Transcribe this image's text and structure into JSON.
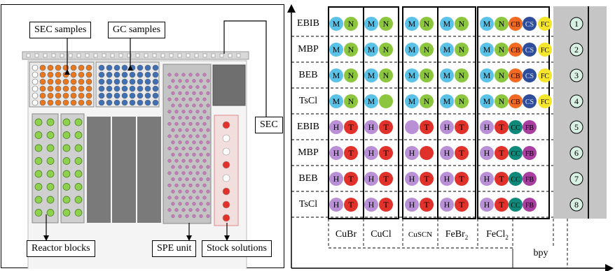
{
  "left_panel": {
    "labels": {
      "sec_samples": "SEC samples",
      "gc_samples": "GC samples",
      "sec": "SEC",
      "reactor_blocks": "Reactor blocks",
      "spe_unit": "SPE unit",
      "stock_solutions": "Stock solutions"
    }
  },
  "grid": {
    "initiators": [
      "EBIB",
      "MBP",
      "BEB",
      "TsCl",
      "EBIB",
      "MBP",
      "BEB",
      "TsCl"
    ],
    "salts": [
      "CuBr",
      "CuCl",
      "CuSCN",
      "FeBr",
      "FeCl"
    ],
    "salt_subscripts": [
      "",
      "",
      "",
      "2",
      "2"
    ],
    "ligand_label": "bpy",
    "reactor_numbers": [
      "1",
      "2",
      "3",
      "4",
      "5",
      "6",
      "7",
      "8"
    ],
    "rows": [
      [
        [
          "M",
          "N"
        ],
        [
          "M",
          "N"
        ],
        [
          "M",
          "N"
        ],
        [
          "M",
          "N"
        ],
        [
          "M",
          "N",
          "CB",
          "CS"
        ],
        [
          "FC"
        ]
      ],
      [
        [
          "M",
          "N"
        ],
        [
          "M",
          "N"
        ],
        [
          "M",
          "N"
        ],
        [
          "M",
          "N"
        ],
        [
          "M",
          "N",
          "CB",
          "CS"
        ],
        [
          "FC"
        ]
      ],
      [
        [
          "M",
          "N"
        ],
        [
          "M",
          "N"
        ],
        [
          "M",
          "N"
        ],
        [
          "M",
          "N"
        ],
        [
          "M",
          "N",
          "CB",
          "CS"
        ],
        [
          "FC"
        ]
      ],
      [
        [
          "M",
          "N"
        ],
        [
          "M",
          ""
        ],
        [
          "M",
          "N"
        ],
        [
          "M",
          "N"
        ],
        [
          "M",
          "N",
          "CB",
          "CS"
        ],
        [
          "FC"
        ]
      ],
      [
        [
          "H",
          "T"
        ],
        [
          "H",
          "T"
        ],
        [
          "",
          "T"
        ],
        [
          "H",
          "T"
        ],
        [
          "H",
          "T",
          "CC",
          "FB"
        ],
        []
      ],
      [
        [
          "H",
          "T"
        ],
        [
          "H",
          "T"
        ],
        [
          "H",
          ""
        ],
        [
          "H",
          "T"
        ],
        [
          "H",
          "T",
          "CC",
          "FB"
        ],
        []
      ],
      [
        [
          "H",
          "T"
        ],
        [
          "H",
          "T"
        ],
        [
          "H",
          "T"
        ],
        [
          "H",
          "T"
        ],
        [
          "H",
          "T",
          "CC",
          "FB"
        ],
        []
      ],
      [
        [
          "H",
          "T"
        ],
        [
          "H",
          "T"
        ],
        [
          "H",
          "T"
        ],
        [
          "H",
          "T"
        ],
        [
          "H",
          "T",
          "CC",
          "FB"
        ],
        []
      ]
    ],
    "colors": {
      "M": "#5bc2e7",
      "N": "#8cc63e",
      "CB": "#f26a21",
      "CS": "#2e4d9b",
      "FC": "#f5e52b",
      "H": "#b98fd6",
      "T": "#e0322b",
      "CC": "#0f8a7a",
      "FB": "#a83ea0",
      "reactor": "#d8f0e3"
    }
  }
}
